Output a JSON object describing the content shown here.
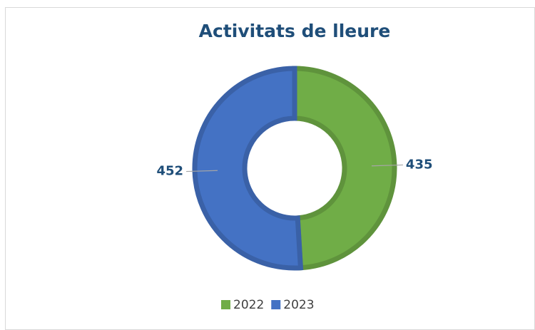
{
  "chart_data": {
    "type": "donut",
    "title": "Activitats de lleure",
    "categories": [
      "2022",
      "2023"
    ],
    "values": [
      435,
      452
    ],
    "colors": [
      "#70ad47",
      "#4472c4"
    ],
    "legend": "bottom"
  }
}
